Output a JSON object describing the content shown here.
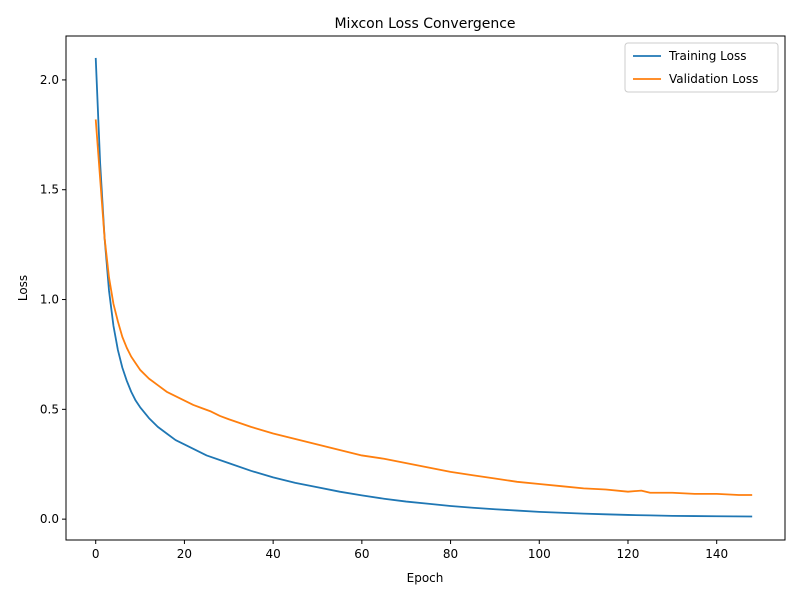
{
  "chart_data": {
    "type": "line",
    "title": "Mixcon Loss Convergence",
    "xlabel": "Epoch",
    "ylabel": "Loss",
    "xlim": [
      -6.7,
      155.4
    ],
    "ylim": [
      -0.095,
      2.2
    ],
    "xticks": [
      0,
      20,
      40,
      60,
      80,
      100,
      120,
      140
    ],
    "xtick_labels": [
      "0",
      "20",
      "40",
      "60",
      "80",
      "100",
      "120",
      "140"
    ],
    "yticks": [
      0.0,
      0.5,
      1.0,
      1.5,
      2.0
    ],
    "ytick_labels": [
      "0.0",
      "0.5",
      "1.0",
      "1.5",
      "2.0"
    ],
    "grid": false,
    "legend_position": "top-right",
    "series": [
      {
        "name": "Training Loss",
        "color": "#1f77b4",
        "x": [
          0,
          1,
          2,
          3,
          4,
          5,
          6,
          7,
          8,
          9,
          10,
          12,
          14,
          16,
          18,
          20,
          25,
          30,
          35,
          40,
          45,
          50,
          55,
          60,
          65,
          70,
          75,
          80,
          85,
          90,
          95,
          100,
          105,
          110,
          115,
          120,
          125,
          130,
          135,
          140,
          148
        ],
        "y": [
          2.1,
          1.62,
          1.28,
          1.04,
          0.88,
          0.77,
          0.69,
          0.63,
          0.58,
          0.54,
          0.51,
          0.46,
          0.42,
          0.39,
          0.36,
          0.34,
          0.29,
          0.255,
          0.22,
          0.19,
          0.165,
          0.145,
          0.125,
          0.108,
          0.093,
          0.08,
          0.07,
          0.06,
          0.052,
          0.045,
          0.039,
          0.033,
          0.029,
          0.025,
          0.022,
          0.019,
          0.017,
          0.015,
          0.014,
          0.013,
          0.012
        ]
      },
      {
        "name": "Validation Loss",
        "color": "#ff7f0e",
        "x": [
          0,
          1,
          2,
          3,
          4,
          5,
          6,
          7,
          8,
          9,
          10,
          12,
          14,
          16,
          18,
          20,
          22,
          24,
          26,
          28,
          30,
          35,
          40,
          45,
          50,
          55,
          60,
          65,
          70,
          75,
          80,
          85,
          90,
          95,
          100,
          105,
          110,
          115,
          120,
          123,
          125,
          130,
          135,
          140,
          145,
          148
        ],
        "y": [
          1.82,
          1.55,
          1.28,
          1.1,
          0.98,
          0.9,
          0.83,
          0.78,
          0.74,
          0.71,
          0.68,
          0.64,
          0.61,
          0.58,
          0.56,
          0.54,
          0.52,
          0.505,
          0.49,
          0.47,
          0.455,
          0.42,
          0.39,
          0.365,
          0.34,
          0.315,
          0.29,
          0.275,
          0.255,
          0.235,
          0.215,
          0.2,
          0.185,
          0.17,
          0.16,
          0.15,
          0.14,
          0.135,
          0.125,
          0.13,
          0.12,
          0.12,
          0.115,
          0.115,
          0.11,
          0.11
        ]
      }
    ]
  }
}
